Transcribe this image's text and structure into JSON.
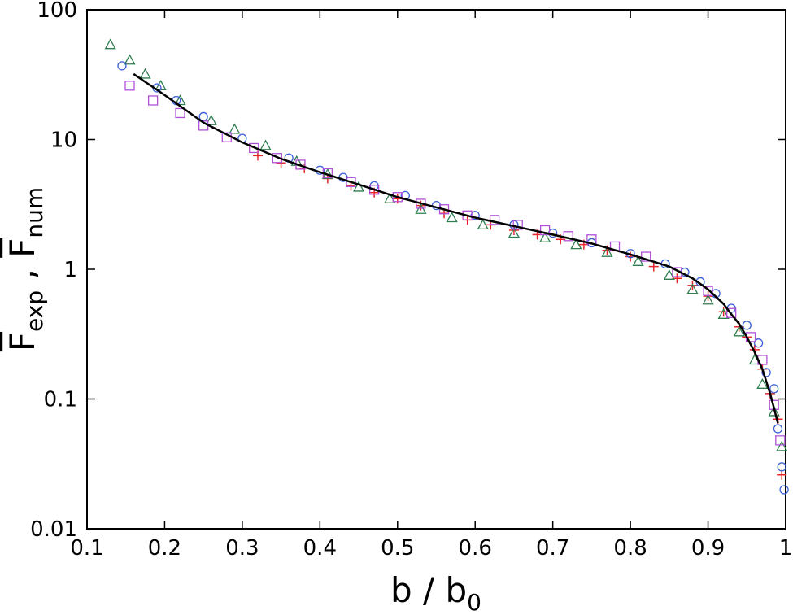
{
  "chart_data": {
    "type": "scatter",
    "xlabel": {
      "main": "b / b",
      "sub": "0"
    },
    "ylabel": {
      "main1": "F",
      "sub1": "exp",
      "sep": " , ",
      "main2": "F",
      "sub2": "num"
    },
    "xlim": [
      0.1,
      1
    ],
    "xticks": [
      0.1,
      0.2,
      0.3,
      0.4,
      0.5,
      0.6,
      0.7,
      0.8,
      0.9,
      1
    ],
    "ylim": [
      0.01,
      100
    ],
    "yticks": [
      0.01,
      0.1,
      1,
      10,
      100
    ],
    "yscale": "log",
    "grid": false,
    "series": [
      {
        "marker": "plus",
        "color": "#e8262a",
        "x": [
          0.32,
          0.35,
          0.38,
          0.41,
          0.44,
          0.47,
          0.5,
          0.53,
          0.56,
          0.59,
          0.62,
          0.65,
          0.68,
          0.71,
          0.74,
          0.77,
          0.8,
          0.83,
          0.86,
          0.88,
          0.9,
          0.92,
          0.94,
          0.95,
          0.96,
          0.97,
          0.98,
          0.99,
          0.995
        ],
        "values": [
          7.5,
          6.6,
          6.0,
          5.0,
          4.4,
          3.9,
          3.5,
          3.1,
          2.7,
          2.4,
          2.2,
          2.0,
          1.85,
          1.7,
          1.55,
          1.4,
          1.25,
          1.05,
          0.85,
          0.75,
          0.62,
          0.47,
          0.36,
          0.3,
          0.24,
          0.17,
          0.11,
          0.07,
          0.026
        ]
      },
      {
        "marker": "triangle",
        "color": "#2e7d4f",
        "x": [
          0.13,
          0.155,
          0.175,
          0.195,
          0.22,
          0.26,
          0.29,
          0.33,
          0.37,
          0.41,
          0.45,
          0.49,
          0.53,
          0.57,
          0.61,
          0.65,
          0.69,
          0.73,
          0.77,
          0.81,
          0.85,
          0.88,
          0.9,
          0.92,
          0.94,
          0.96,
          0.97,
          0.985,
          0.995
        ],
        "values": [
          54,
          41,
          32,
          26,
          20,
          14,
          12,
          9,
          6.8,
          5.4,
          4.3,
          3.5,
          2.9,
          2.5,
          2.2,
          1.9,
          1.75,
          1.55,
          1.35,
          1.15,
          0.9,
          0.7,
          0.58,
          0.45,
          0.33,
          0.2,
          0.13,
          0.08,
          0.043
        ]
      },
      {
        "marker": "circle",
        "color": "#3b5fd8",
        "x": [
          0.145,
          0.19,
          0.215,
          0.25,
          0.3,
          0.36,
          0.4,
          0.43,
          0.47,
          0.51,
          0.55,
          0.6,
          0.65,
          0.7,
          0.75,
          0.8,
          0.845,
          0.87,
          0.89,
          0.91,
          0.93,
          0.95,
          0.965,
          0.975,
          0.985,
          0.99,
          0.995,
          0.998
        ],
        "values": [
          37,
          25,
          20,
          15,
          10.2,
          7.2,
          5.8,
          5.1,
          4.4,
          3.7,
          3.1,
          2.6,
          2.2,
          1.9,
          1.6,
          1.32,
          1.1,
          0.95,
          0.8,
          0.65,
          0.5,
          0.37,
          0.27,
          0.16,
          0.12,
          0.059,
          0.03,
          0.02
        ]
      },
      {
        "marker": "square",
        "color": "#b050d8",
        "x": [
          0.155,
          0.185,
          0.22,
          0.25,
          0.28,
          0.315,
          0.345,
          0.375,
          0.41,
          0.44,
          0.47,
          0.5,
          0.53,
          0.56,
          0.59,
          0.625,
          0.655,
          0.69,
          0.72,
          0.75,
          0.78,
          0.82,
          0.86,
          0.9,
          0.93,
          0.955,
          0.97,
          0.985,
          0.993
        ],
        "values": [
          26,
          20,
          16,
          12.8,
          10.4,
          8.6,
          7.2,
          6.4,
          5.5,
          4.7,
          4.1,
          3.6,
          3.2,
          2.9,
          2.6,
          2.4,
          2.2,
          2.0,
          1.8,
          1.7,
          1.5,
          1.25,
          0.95,
          0.68,
          0.46,
          0.3,
          0.2,
          0.09,
          0.048
        ]
      },
      {
        "marker": "line",
        "color": "#000000",
        "x": [
          0.16,
          0.2,
          0.25,
          0.3,
          0.35,
          0.4,
          0.45,
          0.5,
          0.55,
          0.6,
          0.65,
          0.7,
          0.75,
          0.8,
          0.85,
          0.88,
          0.9,
          0.92,
          0.93,
          0.94,
          0.95,
          0.96,
          0.97,
          0.98,
          0.985,
          0.99
        ],
        "values": [
          32,
          22,
          13.5,
          9.5,
          7.1,
          5.6,
          4.5,
          3.6,
          3.0,
          2.5,
          2.15,
          1.85,
          1.58,
          1.3,
          1.05,
          0.85,
          0.7,
          0.54,
          0.45,
          0.38,
          0.3,
          0.23,
          0.17,
          0.11,
          0.085,
          0.065
        ]
      }
    ]
  }
}
